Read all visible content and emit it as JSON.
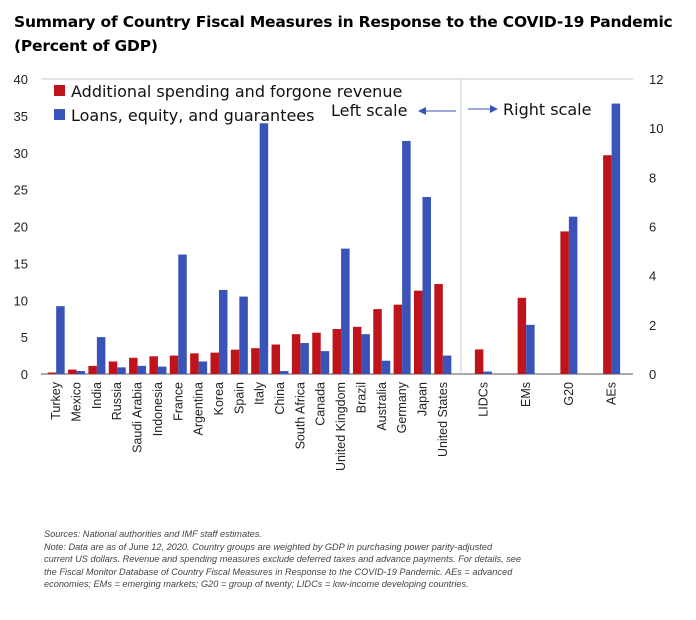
{
  "title_line1": "Summary of Country Fiscal Measures in Response to the COVID-19 Pandemic",
  "title_line2": "(Percent of GDP)",
  "chart_data": {
    "type": "bar",
    "legend": [
      {
        "label": "Additional spending and forgone revenue",
        "color": "#c0141c"
      },
      {
        "label": "Loans, equity, and guarantees",
        "color": "#3a53b8"
      }
    ],
    "left_axis": {
      "ylim": [
        0,
        40
      ],
      "ticks": [
        0,
        5,
        10,
        15,
        20,
        25,
        30,
        35,
        40
      ],
      "label": "Left scale"
    },
    "right_axis": {
      "ylim": [
        0,
        12
      ],
      "ticks": [
        0,
        2,
        4,
        6,
        8,
        10,
        12
      ],
      "label": "Right scale"
    },
    "left_panel": {
      "categories": [
        "Turkey",
        "Mexico",
        "India",
        "Russia",
        "Saudi Arabia",
        "Indonesia",
        "France",
        "Argentina",
        "Korea",
        "Spain",
        "Italy",
        "China",
        "South Africa",
        "Canada",
        "United Kingdom",
        "Brazil",
        "Australia",
        "Germany",
        "Japan",
        "United States"
      ],
      "series": [
        {
          "name": "Additional spending and forgone revenue",
          "values": [
            0.2,
            0.6,
            1.1,
            1.7,
            2.2,
            2.4,
            2.5,
            2.8,
            2.9,
            3.3,
            3.5,
            4.0,
            5.4,
            5.6,
            6.1,
            6.4,
            8.8,
            9.4,
            11.3,
            12.2
          ]
        },
        {
          "name": "Loans, equity, and guarantees",
          "values": [
            9.2,
            0.4,
            5.0,
            0.9,
            1.1,
            1.0,
            16.2,
            1.7,
            11.4,
            10.5,
            34.0,
            0.4,
            4.2,
            3.1,
            17.0,
            5.4,
            1.8,
            31.6,
            24.0,
            2.5
          ]
        }
      ]
    },
    "right_panel": {
      "categories": [
        "LIDCs",
        "EMs",
        "G20",
        "AEs"
      ],
      "series": [
        {
          "name": "Additional spending and forgone revenue",
          "values": [
            1.0,
            3.1,
            5.8,
            8.9
          ]
        },
        {
          "name": "Loans, equity, and guarantees",
          "values": [
            0.1,
            2.0,
            6.4,
            11.0
          ]
        }
      ]
    }
  },
  "notes": {
    "sources": "Sources: National authorities and IMF staff estimates.",
    "line1": "Note: Data are as of June 12, 2020. Country groups are weighted by GDP in purchasing power parity-adjusted",
    "line2": "current US dollars. Revenue and spending measures exclude deferred taxes and advance payments. For details, see",
    "line3": "the Fiscal Monitor Database of Country Fiscal Measures in Response to the COVID-19 Pandemic. AEs = advanced",
    "line4": "economies; EMs = emerging markets; G20 = group of twenty; LIDCs = low-income developing countries."
  }
}
